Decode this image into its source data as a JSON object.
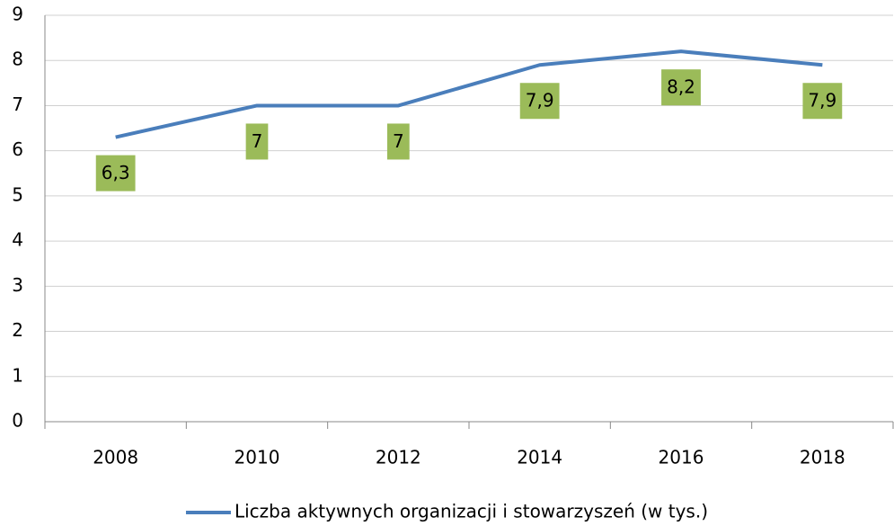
{
  "chart_data": {
    "type": "line",
    "categories": [
      "2008",
      "2010",
      "2012",
      "2014",
      "2016",
      "2018"
    ],
    "series": [
      {
        "name": "Liczba aktywnych organizacji i stowarzyszeń (w tys.)",
        "color": "#4a7ebb",
        "values": [
          6.3,
          7,
          7,
          7.9,
          8.2,
          7.9
        ],
        "value_labels": [
          "6,3",
          "7",
          "7",
          "7,9",
          "8,2",
          "7,9"
        ]
      }
    ],
    "label_color": "#9bbb59",
    "ylim": [
      0,
      9
    ],
    "yticks": [
      0,
      1,
      2,
      3,
      4,
      5,
      6,
      7,
      8,
      9
    ],
    "grid": true,
    "legend": "bottom"
  }
}
